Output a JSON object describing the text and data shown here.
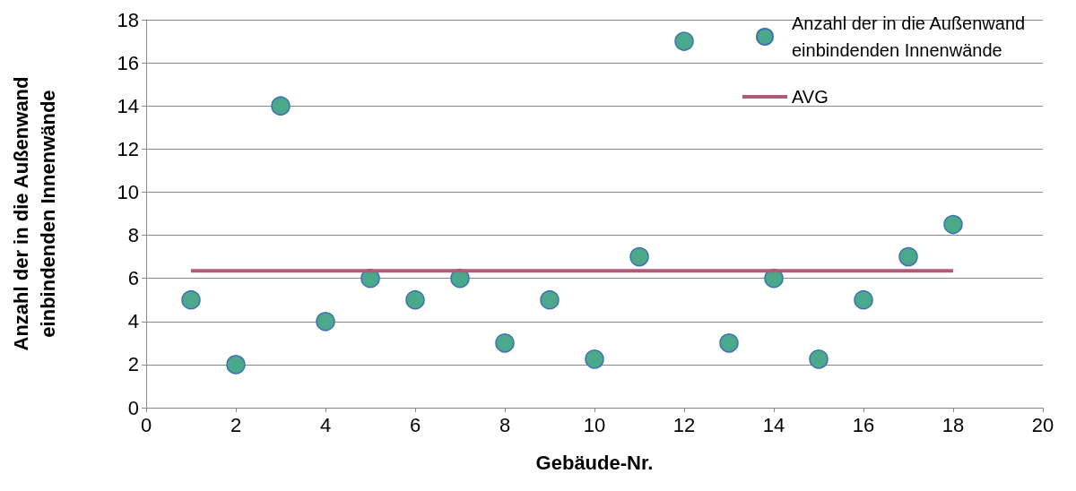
{
  "chart_data": {
    "type": "scatter",
    "xlabel": "Gebäude-Nr.",
    "ylabel": "Anzahl der in die Außenwand einbindenden Innenwände",
    "x": [
      1,
      2,
      3,
      4,
      5,
      6,
      7,
      8,
      9,
      10,
      11,
      12,
      13,
      14,
      15,
      16,
      17,
      18
    ],
    "series": [
      {
        "name": "Anzahl der in die Außenwand einbindenden Innenwände",
        "marker": "circle",
        "color": "#4aa98a",
        "values": [
          5,
          2,
          14,
          4,
          6,
          5,
          6,
          3,
          5,
          2.25,
          7,
          17,
          3,
          6,
          2.25,
          5,
          7,
          8.5
        ]
      },
      {
        "name": "AVG",
        "type": "line",
        "color": "#b05a78",
        "x": [
          1,
          18
        ],
        "values": [
          6.35,
          6.35
        ]
      }
    ],
    "xlim": [
      0,
      20
    ],
    "xticks": [
      0,
      2,
      4,
      6,
      8,
      10,
      12,
      14,
      16,
      18,
      20
    ],
    "ylim": [
      0,
      18
    ],
    "yticks": [
      0,
      2,
      4,
      6,
      8,
      10,
      12,
      14,
      16,
      18
    ],
    "grid": "y",
    "legend": "top right"
  }
}
